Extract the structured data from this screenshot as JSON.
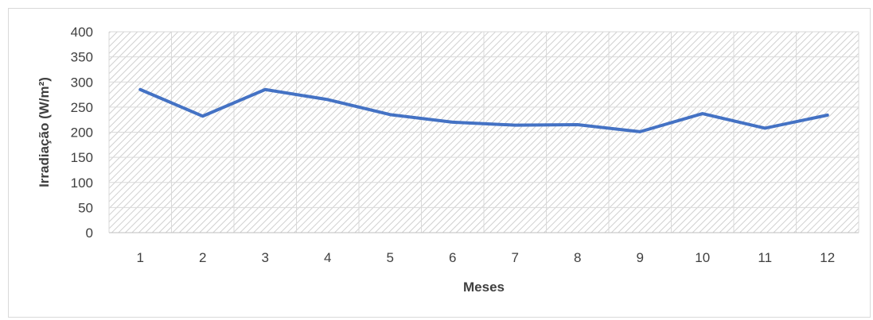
{
  "chart_data": {
    "type": "line",
    "title": "",
    "xlabel": "Meses",
    "ylabel": "Irradiação  (W/m²)",
    "categories": [
      "1",
      "2",
      "3",
      "4",
      "5",
      "6",
      "7",
      "8",
      "9",
      "10",
      "11",
      "12"
    ],
    "series": [
      {
        "values": [
          285,
          232,
          285,
          265,
          235,
          220,
          214,
          215,
          201,
          237,
          208,
          234
        ],
        "color": "#4472c4"
      }
    ],
    "ylim": [
      0,
      400
    ],
    "yticks": [
      0,
      50,
      100,
      150,
      200,
      250,
      300,
      350,
      400
    ],
    "grid": true,
    "plot_fill": "hatched",
    "legend": "none"
  }
}
